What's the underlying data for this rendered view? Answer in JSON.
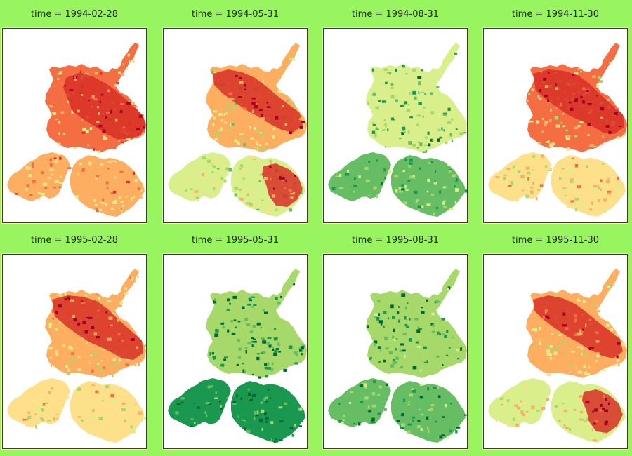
{
  "figure": {
    "background_color": "#98f55f",
    "colormap": [
      "#a50026",
      "#d73027",
      "#f46d43",
      "#fdae61",
      "#fee08b",
      "#d9ef8b",
      "#a6d96a",
      "#66bd63",
      "#1a9850",
      "#006837"
    ]
  },
  "panels": [
    {
      "title": "time = 1994-02-28",
      "level": 0.35,
      "hotspot": "north-band"
    },
    {
      "title": "time = 1994-05-31",
      "level": 0.55,
      "hotspot": "north-and-south"
    },
    {
      "title": "time = 1994-08-31",
      "level": 0.75,
      "hotspot": "none"
    },
    {
      "title": "time = 1994-11-30",
      "level": 0.45,
      "hotspot": "north"
    },
    {
      "title": "time = 1995-02-28",
      "level": 0.48,
      "hotspot": "north"
    },
    {
      "title": "time = 1995-05-31",
      "level": 0.9,
      "hotspot": "none"
    },
    {
      "title": "time = 1995-08-31",
      "level": 0.8,
      "hotspot": "none"
    },
    {
      "title": "time = 1995-11-30",
      "level": 0.5,
      "hotspot": "north-and-south"
    }
  ]
}
